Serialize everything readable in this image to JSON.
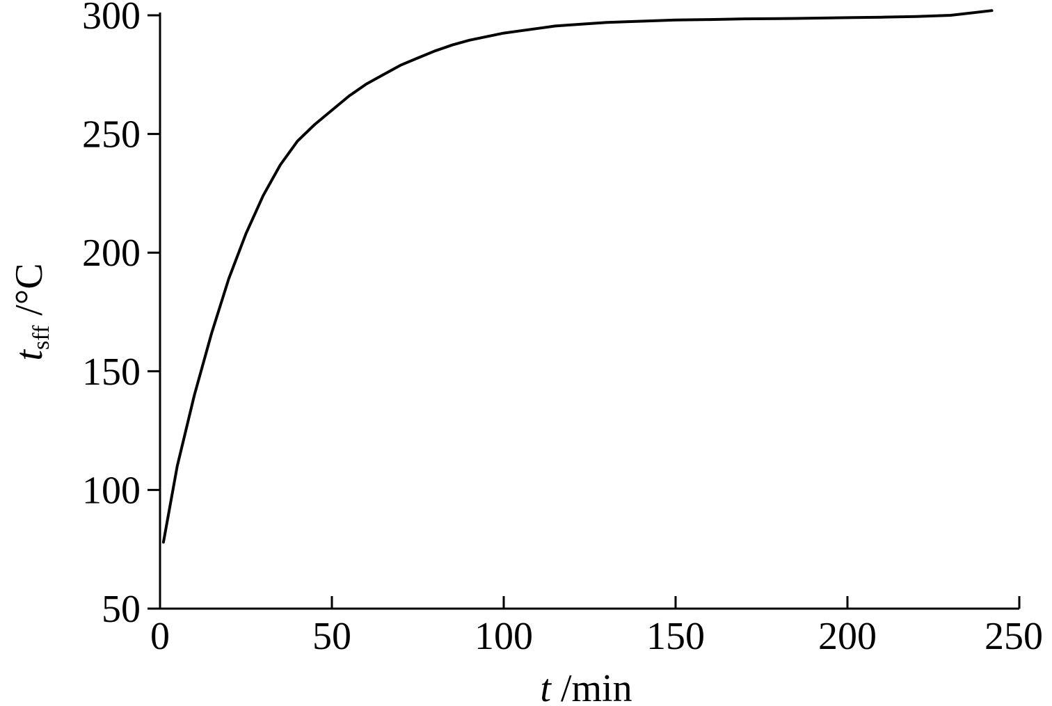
{
  "chart_data": {
    "type": "line",
    "title": "",
    "xlabel": {
      "symbol": "t",
      "unit": " /min"
    },
    "ylabel": {
      "symbol": "t",
      "subscript": "sff",
      "unit": " /°C"
    },
    "xlim": [
      0,
      250
    ],
    "ylim": [
      50,
      300
    ],
    "xticks": [
      0,
      50,
      100,
      150,
      200,
      250
    ],
    "yticks": [
      50,
      100,
      150,
      200,
      250,
      300
    ],
    "grid": false,
    "legend": "none",
    "series": [
      {
        "color": "#000000",
        "x": [
          1,
          5,
          10,
          15,
          20,
          25,
          30,
          35,
          40,
          45,
          50,
          55,
          60,
          65,
          70,
          75,
          80,
          85,
          90,
          95,
          100,
          105,
          110,
          115,
          120,
          130,
          140,
          150,
          160,
          170,
          180,
          190,
          200,
          210,
          220,
          230,
          242
        ],
        "y": [
          78,
          110,
          140,
          166,
          189,
          208,
          224,
          237,
          247,
          254,
          260,
          266,
          271,
          275,
          279,
          282,
          285,
          287.5,
          289.5,
          291,
          292.5,
          293.5,
          294.5,
          295.5,
          296,
          297,
          297.5,
          298,
          298.2,
          298.5,
          298.6,
          298.8,
          299,
          299.2,
          299.5,
          300,
          302
        ]
      }
    ]
  }
}
